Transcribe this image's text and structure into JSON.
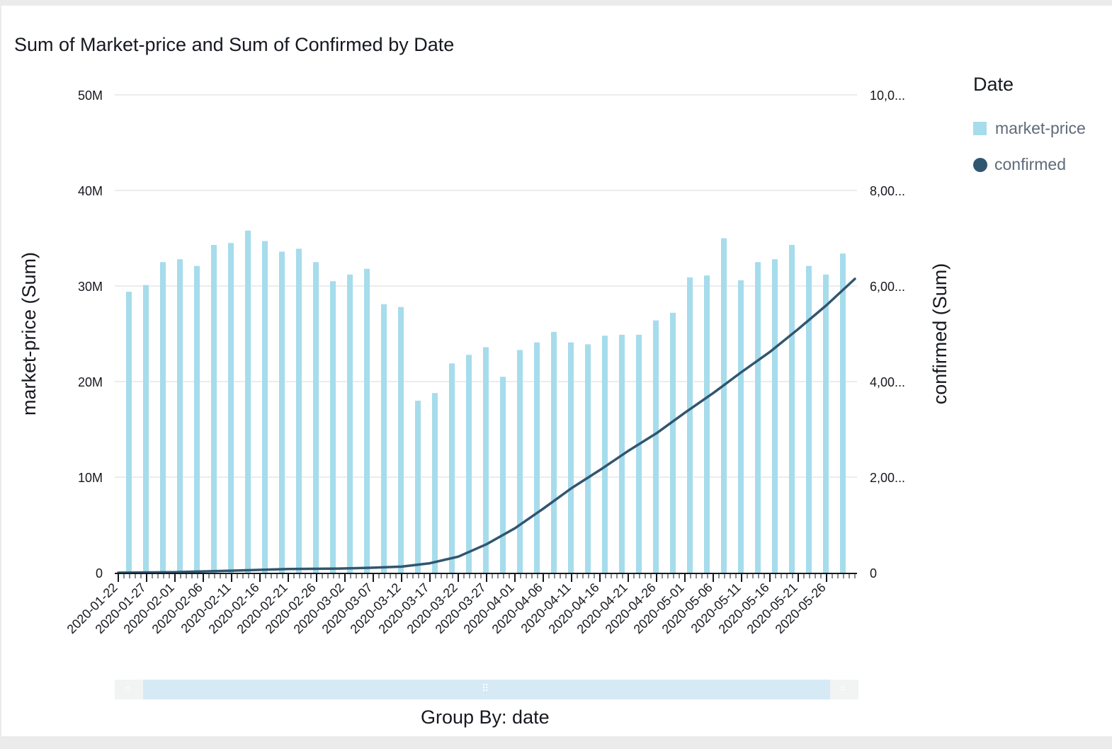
{
  "title": "Sum of Market-price and Sum of Confirmed by Date",
  "legend": {
    "title": "Date",
    "items": [
      {
        "label": "market-price",
        "color": "#a6dcec",
        "shape": "square"
      },
      {
        "label": "confirmed",
        "color": "#31566f",
        "shape": "circle"
      }
    ]
  },
  "footer": {
    "group_by_label": "Group By: date"
  },
  "scrollbar": {
    "left_grip": "=",
    "center_grip": "⠿",
    "right_grip": "="
  },
  "colors": {
    "bar": "#a6dcec",
    "line": "#31566f",
    "grid": "#e5e5e5",
    "axis": "#16191f"
  },
  "chart_data": {
    "type": "bar+line",
    "title": "Sum of Market-price and Sum of Confirmed by Date",
    "xlabel": "",
    "ylabel_left": "market-price (Sum)",
    "ylabel_right": "confirmed (Sum)",
    "ylim_left": [
      0,
      50000000
    ],
    "ylim_right": [
      0,
      10000000
    ],
    "yticks_left": [
      "0",
      "10M",
      "20M",
      "30M",
      "40M",
      "50M"
    ],
    "yticks_right": [
      "0",
      "2,00...",
      "4,00...",
      "6,00...",
      "8,00...",
      "10,0..."
    ],
    "grid": true,
    "legend_position": "right",
    "x_start": "2020-01-22",
    "x_end": "2020-05-31",
    "x_tick_labels": [
      "2020-01-22",
      "2020-01-27",
      "2020-02-01",
      "2020-02-06",
      "2020-02-11",
      "2020-02-16",
      "2020-02-21",
      "2020-02-26",
      "2020-03-02",
      "2020-03-07",
      "2020-03-12",
      "2020-03-17",
      "2020-03-22",
      "2020-03-27",
      "2020-04-01",
      "2020-04-06",
      "2020-04-11",
      "2020-04-16",
      "2020-04-21",
      "2020-04-26",
      "2020-05-01",
      "2020-05-06",
      "2020-05-11",
      "2020-05-16",
      "2020-05-21",
      "2020-05-26"
    ],
    "series": [
      {
        "name": "market-price",
        "kind": "bar",
        "points": [
          {
            "x": "2020-01-22",
            "y": 29400000
          },
          {
            "x": "2020-01-25",
            "y": 30100000
          },
          {
            "x": "2020-01-28",
            "y": 32500000
          },
          {
            "x": "2020-01-31",
            "y": 32800000
          },
          {
            "x": "2020-02-03",
            "y": 32100000
          },
          {
            "x": "2020-02-06",
            "y": 34300000
          },
          {
            "x": "2020-02-09",
            "y": 34500000
          },
          {
            "x": "2020-02-12",
            "y": 35800000
          },
          {
            "x": "2020-02-15",
            "y": 34700000
          },
          {
            "x": "2020-02-18",
            "y": 33600000
          },
          {
            "x": "2020-02-21",
            "y": 33900000
          },
          {
            "x": "2020-02-24",
            "y": 32500000
          },
          {
            "x": "2020-02-27",
            "y": 30500000
          },
          {
            "x": "2020-03-01",
            "y": 31200000
          },
          {
            "x": "2020-03-04",
            "y": 31800000
          },
          {
            "x": "2020-03-07",
            "y": 28100000
          },
          {
            "x": "2020-03-10",
            "y": 27800000
          },
          {
            "x": "2020-03-13",
            "y": 18000000
          },
          {
            "x": "2020-03-16",
            "y": 18800000
          },
          {
            "x": "2020-03-19",
            "y": 21900000
          },
          {
            "x": "2020-03-22",
            "y": 22800000
          },
          {
            "x": "2020-03-25",
            "y": 23600000
          },
          {
            "x": "2020-03-28",
            "y": 20500000
          },
          {
            "x": "2020-03-31",
            "y": 23300000
          },
          {
            "x": "2020-04-03",
            "y": 24100000
          },
          {
            "x": "2020-04-06",
            "y": 25200000
          },
          {
            "x": "2020-04-09",
            "y": 24100000
          },
          {
            "x": "2020-04-12",
            "y": 23900000
          },
          {
            "x": "2020-04-15",
            "y": 24800000
          },
          {
            "x": "2020-04-18",
            "y": 24900000
          },
          {
            "x": "2020-04-21",
            "y": 24900000
          },
          {
            "x": "2020-04-24",
            "y": 26400000
          },
          {
            "x": "2020-04-27",
            "y": 27200000
          },
          {
            "x": "2020-04-30",
            "y": 30900000
          },
          {
            "x": "2020-05-03",
            "y": 31100000
          },
          {
            "x": "2020-05-06",
            "y": 35000000
          },
          {
            "x": "2020-05-09",
            "y": 30600000
          },
          {
            "x": "2020-05-12",
            "y": 32500000
          },
          {
            "x": "2020-05-15",
            "y": 32800000
          },
          {
            "x": "2020-05-18",
            "y": 34300000
          },
          {
            "x": "2020-05-21",
            "y": 32100000
          },
          {
            "x": "2020-05-24",
            "y": 31200000
          },
          {
            "x": "2020-05-27",
            "y": 33400000
          }
        ]
      },
      {
        "name": "confirmed",
        "kind": "line",
        "points": [
          {
            "x": "2020-01-22",
            "y": 555
          },
          {
            "x": "2020-02-01",
            "y": 12000
          },
          {
            "x": "2020-02-11",
            "y": 43000
          },
          {
            "x": "2020-02-21",
            "y": 77000
          },
          {
            "x": "2020-03-01",
            "y": 88000
          },
          {
            "x": "2020-03-07",
            "y": 105000
          },
          {
            "x": "2020-03-12",
            "y": 128000
          },
          {
            "x": "2020-03-17",
            "y": 198000
          },
          {
            "x": "2020-03-22",
            "y": 337000
          },
          {
            "x": "2020-03-27",
            "y": 597000
          },
          {
            "x": "2020-04-01",
            "y": 930000
          },
          {
            "x": "2020-04-06",
            "y": 1340000
          },
          {
            "x": "2020-04-11",
            "y": 1770000
          },
          {
            "x": "2020-04-16",
            "y": 2150000
          },
          {
            "x": "2020-04-21",
            "y": 2550000
          },
          {
            "x": "2020-04-26",
            "y": 2920000
          },
          {
            "x": "2020-05-01",
            "y": 3350000
          },
          {
            "x": "2020-05-06",
            "y": 3760000
          },
          {
            "x": "2020-05-11",
            "y": 4200000
          },
          {
            "x": "2020-05-16",
            "y": 4620000
          },
          {
            "x": "2020-05-21",
            "y": 5100000
          },
          {
            "x": "2020-05-26",
            "y": 5600000
          },
          {
            "x": "2020-05-31",
            "y": 6150000
          }
        ]
      }
    ]
  }
}
